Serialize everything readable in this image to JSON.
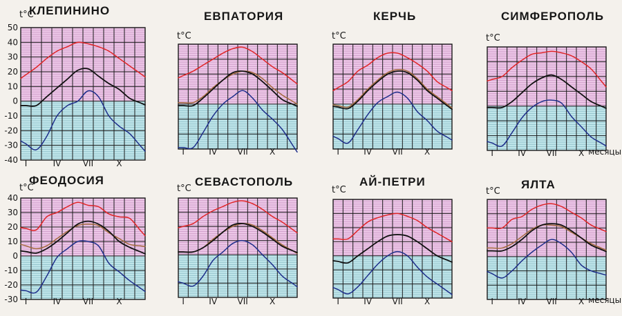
{
  "figure": {
    "colors": {
      "above_zero_fill": "#ecc6e7",
      "below_zero_fill": "#bfe5ea",
      "grid": "#1b1b1b",
      "absolute_max": "#e02426",
      "mean": "#111111",
      "mean_brown": "#a36a3c",
      "absolute_min": "#1d2d8a"
    }
  },
  "chart_data": [
    {
      "type": "line",
      "title": "КЛЕПИНИНО",
      "ylabel": "t°C",
      "xunit": "",
      "ylim": [
        -40,
        50
      ],
      "yticks": [
        "50",
        "40",
        "30",
        "20",
        "10",
        "0",
        "-10",
        "-20",
        "-30",
        "-40"
      ],
      "xtick_labels": [
        "I",
        "IV",
        "VII",
        "X"
      ],
      "xtick_months": [
        1,
        4,
        7,
        10
      ],
      "x": [
        1,
        2,
        3,
        4,
        5,
        6,
        7,
        8,
        9,
        10,
        11,
        12
      ],
      "series": [
        {
          "key": "absolute_max",
          "values": [
            18,
            23,
            29,
            34,
            37,
            40,
            39,
            37,
            34,
            29,
            24,
            19
          ]
        },
        {
          "key": "mean",
          "values": [
            -3,
            -3,
            3,
            9,
            15,
            21,
            22,
            17,
            12,
            8,
            2,
            -1
          ]
        },
        {
          "key": "absolute_min",
          "values": [
            -29,
            -33,
            -24,
            -10,
            -3,
            0,
            7,
            3,
            -10,
            -17,
            -22,
            -30
          ]
        }
      ]
    },
    {
      "type": "line",
      "title": "ЕВПАТОРИЯ",
      "ylabel": "t°C",
      "xunit": "",
      "ylim": [
        -30,
        40
      ],
      "yticks": [],
      "xtick_labels": [
        "I",
        "IV",
        "VII",
        "X"
      ],
      "xtick_months": [
        1,
        4,
        7,
        10
      ],
      "x": [
        1,
        2,
        3,
        4,
        5,
        6,
        7,
        8,
        9,
        10,
        11,
        12
      ],
      "series": [
        {
          "key": "absolute_max",
          "values": [
            19,
            22,
            26,
            30,
            34,
            37,
            38,
            35,
            30,
            25,
            21,
            16
          ]
        },
        {
          "key": "mean_brown",
          "values": [
            1,
            1,
            5,
            11,
            16,
            20,
            22,
            21,
            17,
            11,
            6,
            2
          ]
        },
        {
          "key": "mean",
          "values": [
            -1,
            -1,
            4,
            10,
            16,
            21,
            22,
            20,
            15,
            9,
            3,
            0
          ]
        },
        {
          "key": "absolute_min",
          "values": [
            -29,
            -29,
            -19,
            -8,
            0,
            5,
            9,
            4,
            -4,
            -10,
            -17,
            -27
          ]
        }
      ]
    },
    {
      "type": "line",
      "title": "КЕРЧЬ",
      "ylabel": "t°C",
      "xunit": "",
      "ylim": [
        -30,
        40
      ],
      "yticks": [],
      "xtick_labels": [
        "I",
        "IV",
        "VII",
        "X"
      ],
      "xtick_months": [
        1,
        4,
        7,
        10
      ],
      "x": [
        1,
        2,
        3,
        4,
        5,
        6,
        7,
        8,
        9,
        10,
        11,
        12
      ],
      "series": [
        {
          "key": "absolute_max",
          "values": [
            11,
            15,
            22,
            26,
            31,
            34,
            34,
            31,
            27,
            22,
            15,
            11
          ]
        },
        {
          "key": "mean_brown",
          "values": [
            -1,
            -2,
            3,
            10,
            16,
            21,
            23,
            22,
            17,
            10,
            5,
            0
          ]
        },
        {
          "key": "mean",
          "values": [
            -2,
            -3,
            2,
            9,
            15,
            20,
            22,
            21,
            16,
            9,
            4,
            -1
          ]
        },
        {
          "key": "absolute_min",
          "values": [
            -23,
            -26,
            -17,
            -7,
            1,
            5,
            8,
            4,
            -5,
            -11,
            -18,
            -22
          ]
        }
      ]
    },
    {
      "type": "line",
      "title": "СИМФЕРОПОЛЬ",
      "ylabel": "t°C",
      "xunit": "месяцы",
      "ylim": [
        -30,
        40
      ],
      "yticks": [],
      "xtick_labels": [
        "I",
        "IV",
        "VII",
        "X"
      ],
      "xtick_months": [
        1,
        4,
        7,
        10
      ],
      "x": [
        1,
        2,
        3,
        4,
        5,
        6,
        7,
        8,
        9,
        10,
        11,
        12
      ],
      "series": [
        {
          "key": "absolute_max",
          "values": [
            18,
            20,
            26,
            31,
            35,
            36,
            37,
            36,
            34,
            30,
            25,
            17
          ]
        },
        {
          "key": "mean",
          "values": [
            -1,
            -1,
            3,
            9,
            15,
            19,
            21,
            18,
            13,
            8,
            3,
            0
          ]
        },
        {
          "key": "absolute_min",
          "values": [
            -25,
            -27,
            -18,
            -8,
            -1,
            3,
            4,
            2,
            -7,
            -14,
            -21,
            -25
          ]
        }
      ]
    },
    {
      "type": "line",
      "title": "ФЕОДОСИЯ",
      "ylabel": "t°C",
      "xunit": "",
      "ylim": [
        -30,
        40
      ],
      "yticks": [
        "40",
        "30",
        "20",
        "10",
        "0",
        "-10",
        "-20",
        "-30"
      ],
      "xtick_labels": [
        "I",
        "IV",
        "VII",
        "X"
      ],
      "xtick_months": [
        1,
        4,
        7,
        10
      ],
      "x": [
        1,
        2,
        3,
        4,
        5,
        6,
        7,
        8,
        9,
        10,
        11,
        12
      ],
      "series": [
        {
          "key": "absolute_max",
          "values": [
            19,
            18,
            27,
            30,
            34,
            37,
            35,
            34,
            29,
            27,
            26,
            18
          ]
        },
        {
          "key": "mean_brown",
          "values": [
            7,
            5,
            7,
            12,
            17,
            21,
            22,
            21,
            16,
            12,
            8,
            7
          ]
        },
        {
          "key": "mean",
          "values": [
            3,
            2,
            5,
            10,
            16,
            22,
            24,
            22,
            17,
            10,
            6,
            3
          ]
        },
        {
          "key": "absolute_min",
          "values": [
            -24,
            -25,
            -14,
            -1,
            5,
            10,
            10,
            7,
            -5,
            -11,
            -17,
            -22
          ]
        }
      ]
    },
    {
      "type": "line",
      "title": "СЕВАСТОПОЛЬ",
      "ylabel": "t°C",
      "xunit": "",
      "ylim": [
        -30,
        40
      ],
      "yticks": [],
      "xtick_labels": [
        "I",
        "IV",
        "VII",
        "X"
      ],
      "xtick_months": [
        1,
        4,
        7,
        10
      ],
      "x": [
        1,
        2,
        3,
        4,
        5,
        6,
        7,
        8,
        9,
        10,
        11,
        12
      ],
      "series": [
        {
          "key": "absolute_max",
          "values": [
            20,
            22,
            27,
            31,
            34,
            37,
            38,
            36,
            32,
            27,
            23,
            18
          ]
        },
        {
          "key": "mean_brown",
          "values": [
            2,
            2,
            5,
            11,
            16,
            20,
            22,
            21,
            17,
            12,
            7,
            3
          ]
        },
        {
          "key": "mean",
          "values": [
            2,
            2,
            5,
            10,
            16,
            21,
            22,
            20,
            16,
            11,
            6,
            3
          ]
        },
        {
          "key": "absolute_min",
          "values": [
            -20,
            -22,
            -15,
            -4,
            2,
            8,
            10,
            7,
            0,
            -7,
            -15,
            -20
          ]
        }
      ]
    },
    {
      "type": "line",
      "title": "АЙ-ПЕТРИ",
      "ylabel": "t°C",
      "xunit": "",
      "ylim": [
        -30,
        40
      ],
      "yticks": [],
      "xtick_labels": [
        "I",
        "IV",
        "VII",
        "X"
      ],
      "xtick_months": [
        1,
        4,
        7,
        10
      ],
      "x": [
        1,
        2,
        3,
        4,
        5,
        6,
        7,
        8,
        9,
        10,
        11,
        12
      ],
      "series": [
        {
          "key": "absolute_max",
          "values": [
            12,
            12,
            18,
            24,
            27,
            29,
            30,
            28,
            25,
            20,
            16,
            12
          ]
        },
        {
          "key": "mean",
          "values": [
            -4,
            -5,
            0,
            5,
            10,
            14,
            15,
            14,
            10,
            5,
            0,
            -3
          ]
        },
        {
          "key": "absolute_min",
          "values": [
            -24,
            -27,
            -22,
            -14,
            -6,
            0,
            3,
            0,
            -8,
            -15,
            -20,
            -25
          ]
        }
      ]
    },
    {
      "type": "line",
      "title": "ЯЛТА",
      "ylabel": "t°C",
      "xunit": "месяцы",
      "ylim": [
        -30,
        40
      ],
      "yticks": [],
      "xtick_labels": [
        "I",
        "IV",
        "VII",
        "X"
      ],
      "xtick_months": [
        1,
        4,
        7,
        10
      ],
      "x": [
        1,
        2,
        3,
        4,
        5,
        6,
        7,
        8,
        9,
        10,
        11,
        12
      ],
      "series": [
        {
          "key": "absolute_max",
          "values": [
            20,
            20,
            26,
            28,
            33,
            36,
            37,
            35,
            31,
            27,
            22,
            19
          ]
        },
        {
          "key": "mean_brown",
          "values": [
            6,
            6,
            9,
            14,
            19,
            22,
            22,
            21,
            17,
            13,
            9,
            6
          ]
        },
        {
          "key": "mean",
          "values": [
            4,
            4,
            7,
            12,
            18,
            22,
            23,
            22,
            18,
            13,
            8,
            5
          ]
        },
        {
          "key": "absolute_min",
          "values": [
            -12,
            -15,
            -10,
            -3,
            3,
            8,
            12,
            9,
            3,
            -6,
            -10,
            -12
          ]
        }
      ]
    }
  ]
}
